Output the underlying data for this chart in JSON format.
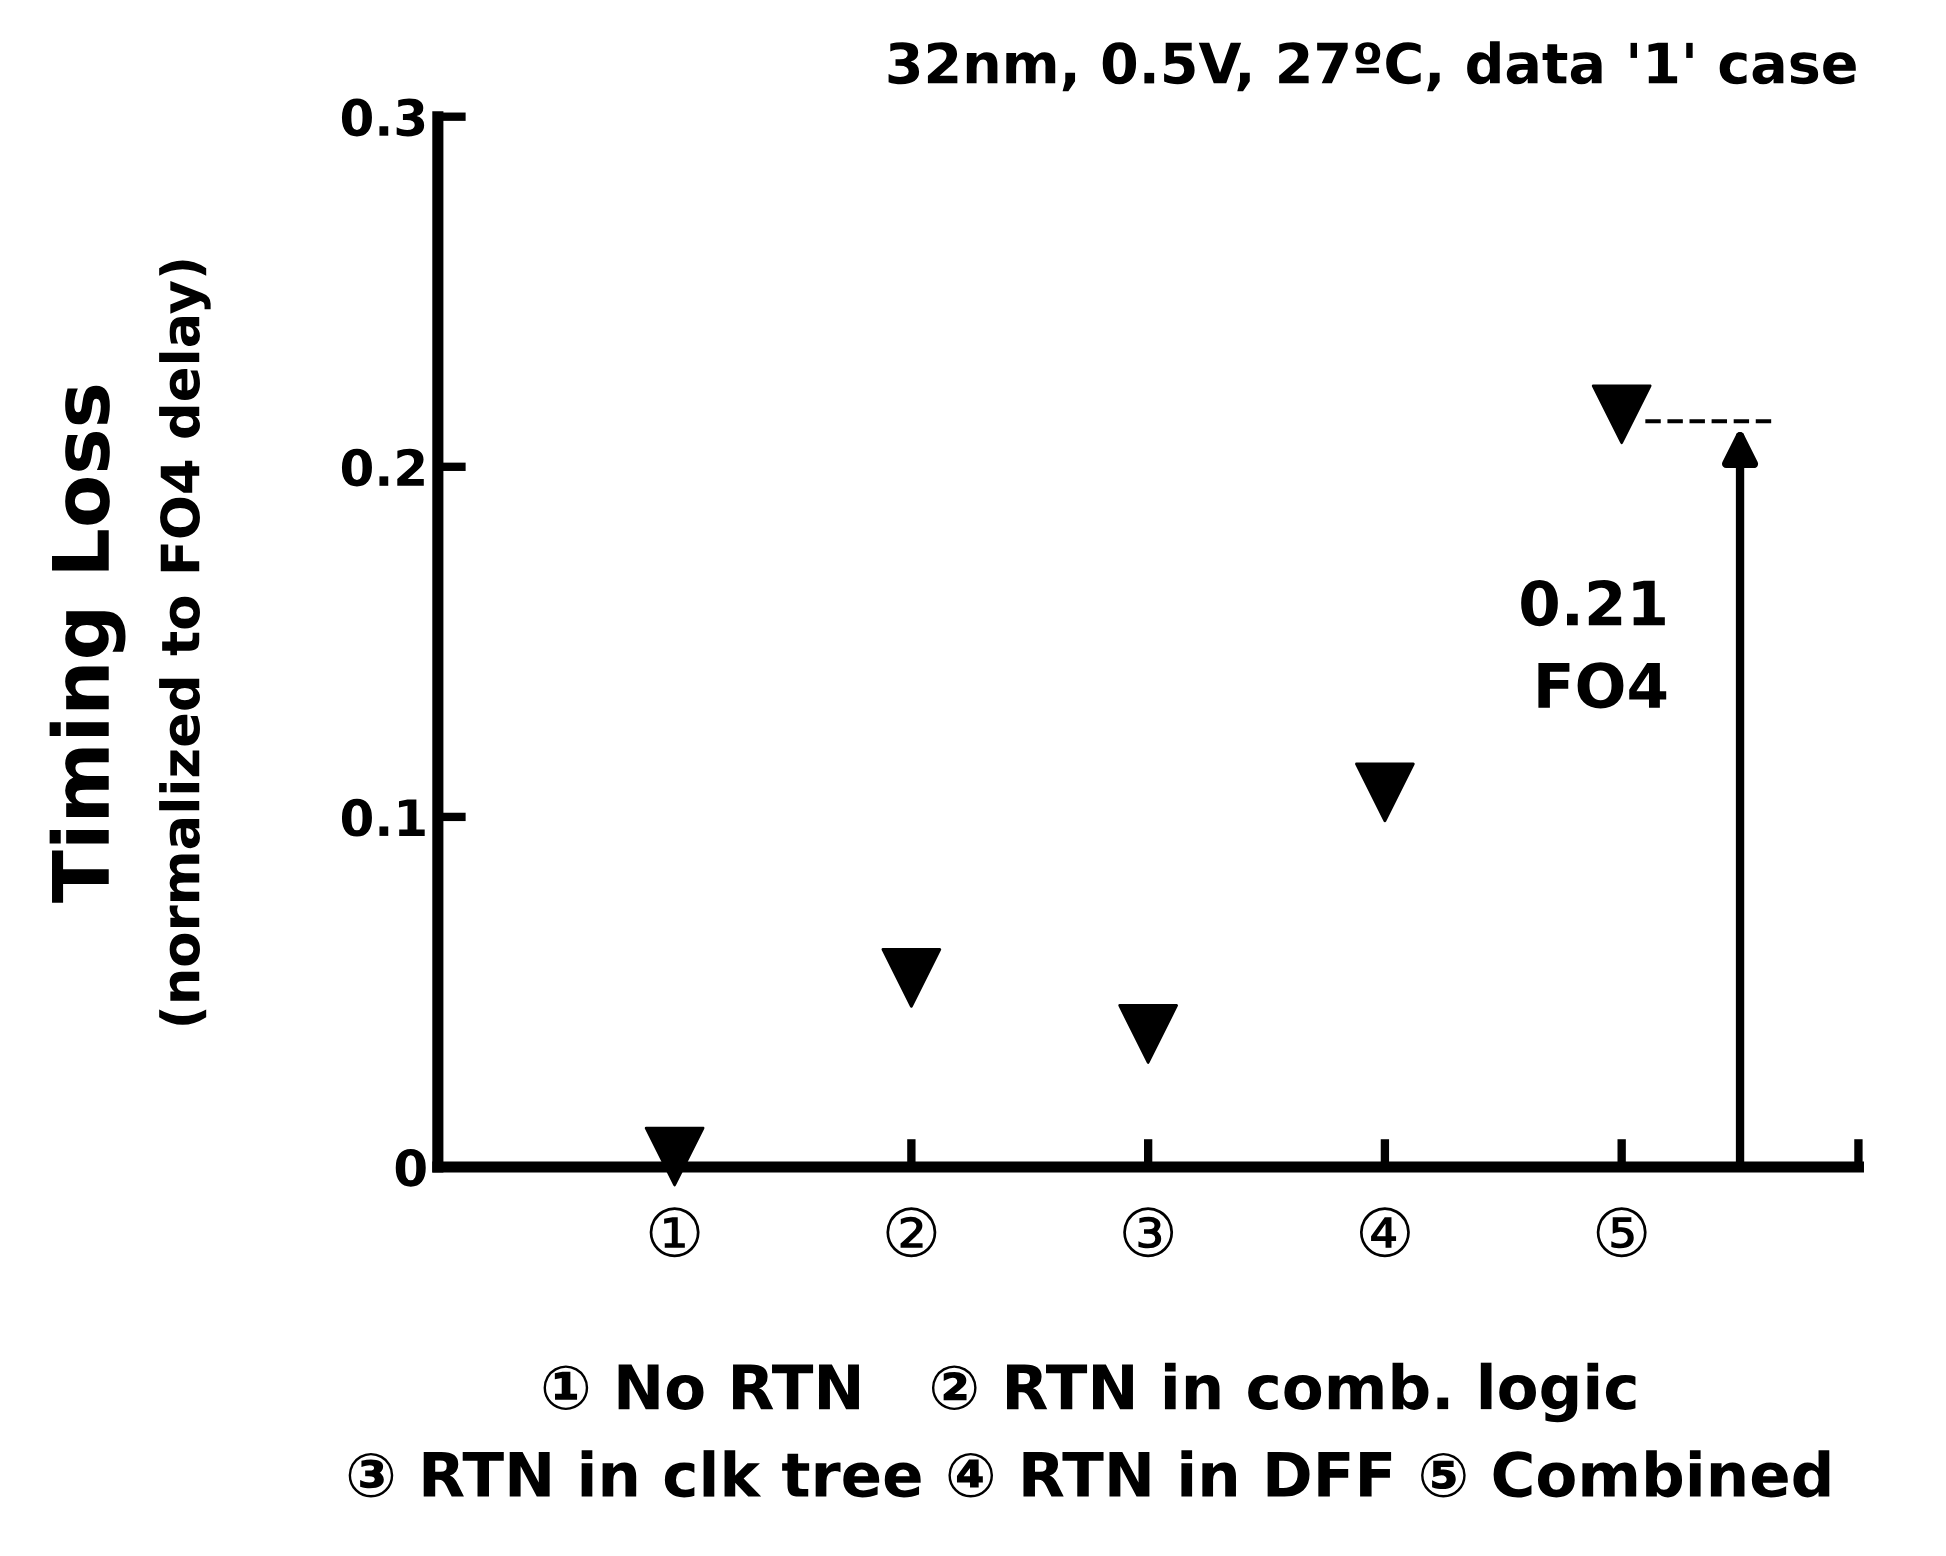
{
  "chart_data": {
    "type": "scatter",
    "title": "32nm, 0.5V, 27ºC, data '1' case",
    "ylabel": "Timing Loss\n(normalized to FO4 delay)",
    "xlabel": "① No RTN   ② RTN in comb. logic\n③ RTN in clk tree ④ RTN in DFF ⑤ Combined",
    "categories": [
      "①",
      "②",
      "③",
      "④",
      "⑤"
    ],
    "series": [
      {
        "color": "#000000",
        "values": [
          0.003,
          0.054,
          0.038,
          0.107,
          0.215
        ]
      }
    ],
    "marker": "triangle",
    "ylim": [
      0,
      0.3
    ],
    "yticks": [
      0,
      0.1,
      0.2,
      0.3
    ],
    "grid": false,
    "ref_lines": [
      {
        "axis": "y",
        "value": 0.213,
        "line_style": "dashed",
        "color": "#000000"
      }
    ],
    "annotations": [
      "0.21\nFO4"
    ]
  }
}
